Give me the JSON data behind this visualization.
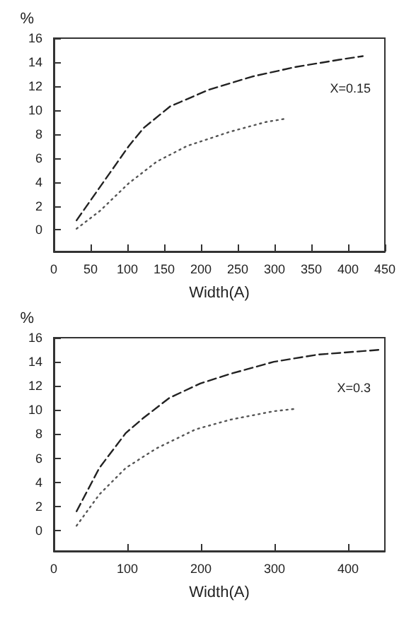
{
  "chart_data": [
    {
      "type": "line",
      "xlabel": "Width(A)",
      "ylabel": "%",
      "annotations": [
        "X=0.15"
      ],
      "xlim": [
        0,
        450
      ],
      "xticks": [
        0,
        50,
        100,
        150,
        200,
        250,
        300,
        350,
        400,
        450
      ],
      "ylim": [
        -1.8,
        16
      ],
      "yticks": [
        0,
        2,
        4,
        6,
        8,
        10,
        12,
        14,
        16
      ],
      "grid": false,
      "marker": "none",
      "series": [
        {
          "color": "#222222",
          "line_style": "dashed",
          "x": [
            31,
            63,
            102,
            122,
            158,
            211,
            270,
            329,
            388,
            420
          ],
          "values": [
            0.8,
            3.6,
            7.0,
            8.5,
            10.3,
            11.7,
            12.8,
            13.6,
            14.2,
            14.5
          ]
        },
        {
          "color": "#555555",
          "line_style": "dotted",
          "x": [
            31,
            63,
            102,
            140,
            181,
            240,
            288,
            317
          ],
          "values": [
            0.1,
            1.6,
            3.9,
            5.7,
            7.0,
            8.2,
            9.0,
            9.3
          ]
        }
      ]
    },
    {
      "type": "line",
      "xlabel": "Width(A)",
      "ylabel": "%",
      "annotations": [
        "X=0.3"
      ],
      "xlim": [
        0,
        450
      ],
      "xticks": [
        0,
        100,
        200,
        300,
        400
      ],
      "ylim": [
        -1.7,
        16
      ],
      "yticks": [
        0,
        2,
        4,
        6,
        8,
        10,
        12,
        14,
        16
      ],
      "grid": false,
      "marker": "none",
      "series": [
        {
          "color": "#222222",
          "line_style": "dashed",
          "x": [
            31,
            62,
            98,
            121,
            157,
            199,
            240,
            299,
            359,
            444
          ],
          "values": [
            1.6,
            5.2,
            8.1,
            9.3,
            11.0,
            12.2,
            13.0,
            14.0,
            14.6,
            15.0
          ]
        },
        {
          "color": "#555555",
          "line_style": "dotted",
          "x": [
            31,
            62,
            98,
            139,
            193,
            240,
            299,
            329
          ],
          "values": [
            0.4,
            3.0,
            5.2,
            6.8,
            8.4,
            9.2,
            9.9,
            10.1
          ]
        }
      ]
    }
  ]
}
